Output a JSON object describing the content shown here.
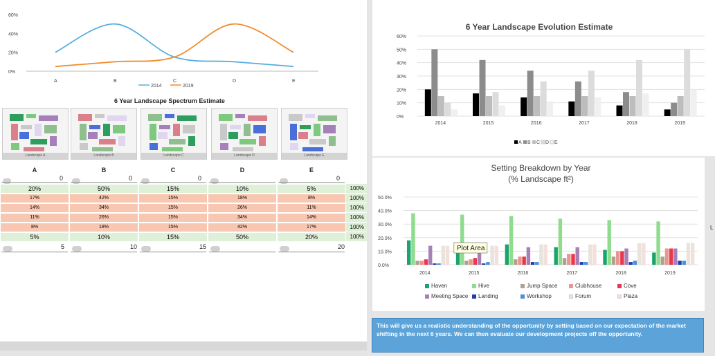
{
  "top_line_chart": {
    "y_ticks": [
      "60%",
      "40%",
      "20%",
      "0%"
    ],
    "categories": [
      "A",
      "B",
      "C",
      "D",
      "E"
    ],
    "legend": [
      "2014",
      "2019"
    ],
    "colors": {
      "2014": "#5aaee0",
      "2019": "#f08c2e"
    }
  },
  "chart_data": [
    {
      "type": "line",
      "categories": [
        "A",
        "B",
        "C",
        "D",
        "E"
      ],
      "series": [
        {
          "name": "2014",
          "values": [
            20,
            50,
            15,
            10,
            5
          ]
        },
        {
          "name": "2019",
          "values": [
            5,
            10,
            15,
            50,
            20
          ]
        }
      ],
      "ylim": [
        0,
        60
      ]
    },
    {
      "type": "bar",
      "title": "6 Year Landscape Evolution Estimate",
      "categories": [
        "2014",
        "2015",
        "2016",
        "2017",
        "2018",
        "2019"
      ],
      "series": [
        {
          "name": "A",
          "values": [
            20,
            17,
            14,
            11,
            8,
            5
          ]
        },
        {
          "name": "B",
          "values": [
            50,
            42,
            34,
            26,
            18,
            10
          ]
        },
        {
          "name": "C",
          "values": [
            15,
            15,
            15,
            15,
            15,
            15
          ]
        },
        {
          "name": "D",
          "values": [
            10,
            18,
            26,
            34,
            42,
            50
          ]
        },
        {
          "name": "E",
          "values": [
            5,
            8,
            11,
            14,
            17,
            20
          ]
        }
      ],
      "ylim": [
        0,
        60
      ],
      "y_ticks": [
        "0%",
        "10%",
        "20%",
        "30%",
        "40%",
        "50%",
        "60%"
      ],
      "legend": "bottom"
    },
    {
      "type": "bar",
      "title": "Setting Breakdown by Year",
      "subtitle": "(% Landscape ft²)",
      "categories": [
        "2014",
        "2015",
        "2016",
        "2017",
        "2018",
        "2019"
      ],
      "series": [
        {
          "name": "Haven",
          "values": [
            18,
            16,
            15,
            13,
            11,
            9
          ]
        },
        {
          "name": "Hive",
          "values": [
            38,
            37,
            36,
            34,
            33,
            32
          ]
        },
        {
          "name": "Jump Space",
          "values": [
            3,
            3,
            4,
            5,
            6,
            6
          ]
        },
        {
          "name": "Clubhouse",
          "values": [
            3,
            4,
            6,
            8,
            10,
            12
          ]
        },
        {
          "name": "Cove",
          "values": [
            4,
            5,
            6,
            8,
            10,
            12
          ]
        },
        {
          "name": "Meeting Space",
          "values": [
            14,
            14,
            13,
            13,
            12,
            12
          ]
        },
        {
          "name": "Landing",
          "values": [
            1,
            1,
            2,
            2,
            2,
            3
          ]
        },
        {
          "name": "Workshop",
          "values": [
            1,
            2,
            2,
            2,
            3,
            3
          ]
        },
        {
          "name": "Forum",
          "values": [
            14,
            14,
            15,
            15,
            16,
            16
          ]
        },
        {
          "name": "Plaza",
          "values": [
            14,
            14,
            15,
            15,
            16,
            16
          ]
        }
      ],
      "ylim": [
        0,
        50
      ],
      "y_ticks": [
        "0.0%",
        "10.0%",
        "20.0%",
        "30.0%",
        "40.0%",
        "50.0%"
      ],
      "legend": "bottom"
    }
  ],
  "spectrum": {
    "title": "6 Year Landscape Spectrum  Estimate",
    "captions": [
      "Landscape A",
      "Landscape B",
      "Landscape C",
      "Landscape D",
      "Landscape E"
    ],
    "headers": [
      "A",
      "B",
      "C",
      "D",
      "E"
    ],
    "spinner_top": [
      "0",
      "0",
      "0",
      "",
      "0"
    ],
    "rows": [
      [
        "20%",
        "50%",
        "15%",
        "10%",
        "5%",
        "100%"
      ],
      [
        "17%",
        "42%",
        "15%",
        "18%",
        "8%",
        "100%"
      ],
      [
        "14%",
        "34%",
        "15%",
        "26%",
        "11%",
        "100%"
      ],
      [
        "11%",
        "26%",
        "15%",
        "34%",
        "14%",
        "100%"
      ],
      [
        "8%",
        "18%",
        "15%",
        "42%",
        "17%",
        "100%"
      ],
      [
        "5%",
        "10%",
        "15%",
        "50%",
        "20%",
        "100%"
      ]
    ],
    "spinner_bottom": [
      "5",
      "10",
      "15",
      "",
      "20"
    ]
  },
  "evolution": {
    "title": "6 Year Landscape Evolution Estimate",
    "legend": [
      "A",
      "B",
      "C",
      "D",
      "E"
    ],
    "colors": [
      "#000000",
      "#8c8c8c",
      "#bdbdbd",
      "#dcdcdc",
      "#f0f0f0"
    ]
  },
  "breakdown": {
    "title": "Setting Breakdown by Year",
    "subtitle": "(% Landscape ft²)",
    "tooltip": "Plot Area",
    "legend": [
      "Haven",
      "Hive",
      "Jump Space",
      "Clubhouse",
      "Cove",
      "Meeting Space",
      "Landing",
      "Workshop",
      "Forum",
      "Plaza"
    ],
    "colors": [
      "#1aa36b",
      "#8fdc8f",
      "#b0a090",
      "#e8968e",
      "#e8384f",
      "#a880b8",
      "#1f3ea8",
      "#4a8fd8",
      "#e8e4dc",
      "#f2e0dc"
    ]
  },
  "note": {
    "text": "This will give us a realistic understanding of the opportunity by setting based on our expectation of the market shifting in the next 6 years.  We can then evaluate our development projects off the opportunity."
  },
  "edge_label": "L"
}
